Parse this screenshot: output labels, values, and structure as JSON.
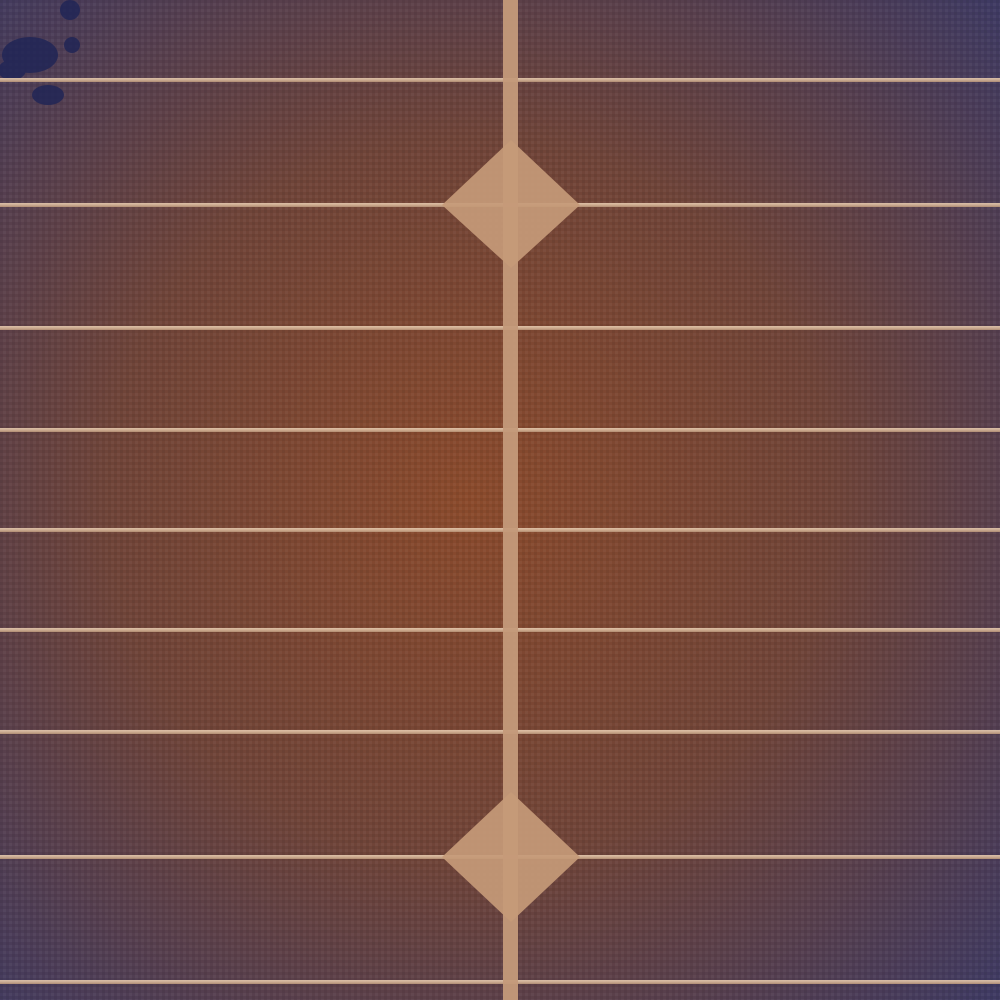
{
  "image": {
    "subject": "solar-cell-closeup",
    "colors": {
      "cell_center": "#8a4a2c",
      "cell_mid": "#6f4438",
      "cell_edge": "#3f3a62",
      "edge_spots": "#1e2456",
      "finger_line": "#d8b89a",
      "busbar": "#c49a7a",
      "busbar_pad": "#c69a78"
    }
  }
}
